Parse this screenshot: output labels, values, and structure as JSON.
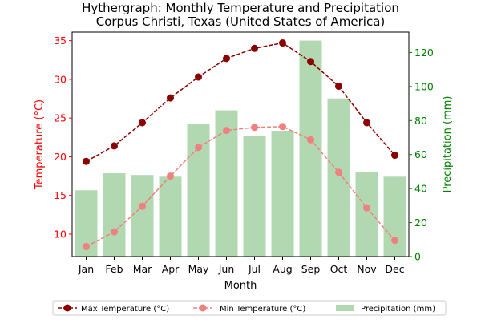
{
  "chart_data": {
    "type": "bar+line",
    "title_line1": "Hythergraph: Monthly Temperature and Precipitation",
    "title_line2": "Corpus Christi, Texas (United States of America)",
    "xlabel": "Month",
    "ylabel_left": "Temperature (°C)",
    "ylabel_right": "Precipitation (mm)",
    "categories": [
      "Jan",
      "Feb",
      "Mar",
      "Apr",
      "May",
      "Jun",
      "Jul",
      "Aug",
      "Sep",
      "Oct",
      "Nov",
      "Dec"
    ],
    "left_axis": {
      "ylim": [
        7.1,
        36.1
      ],
      "ticks": [
        10,
        15,
        20,
        25,
        30,
        35
      ]
    },
    "right_axis": {
      "ylim": [
        0,
        132
      ],
      "ticks": [
        0,
        20,
        40,
        60,
        80,
        100,
        120
      ]
    },
    "series": [
      {
        "name": "Max Temperature (°C)",
        "kind": "line",
        "axis": "left",
        "color": "#8b0000",
        "values": [
          19.4,
          21.4,
          24.4,
          27.6,
          30.3,
          32.7,
          34.0,
          34.7,
          32.3,
          29.1,
          24.4,
          20.2
        ]
      },
      {
        "name": "Min Temperature (°C)",
        "kind": "line",
        "axis": "left",
        "color": "#f08080",
        "values": [
          8.4,
          10.3,
          13.6,
          17.5,
          21.2,
          23.4,
          23.8,
          23.9,
          22.2,
          18.0,
          13.4,
          9.2
        ]
      },
      {
        "name": "Precipitation (mm)",
        "kind": "bar",
        "axis": "right",
        "color": "#b2d8b2",
        "values": [
          39,
          49,
          48,
          47,
          78,
          86,
          71,
          74,
          127,
          93,
          50,
          47
        ]
      }
    ],
    "colors": {
      "left_axis": "#ff0000",
      "right_axis": "#008000"
    },
    "legend_position": "bottom"
  }
}
